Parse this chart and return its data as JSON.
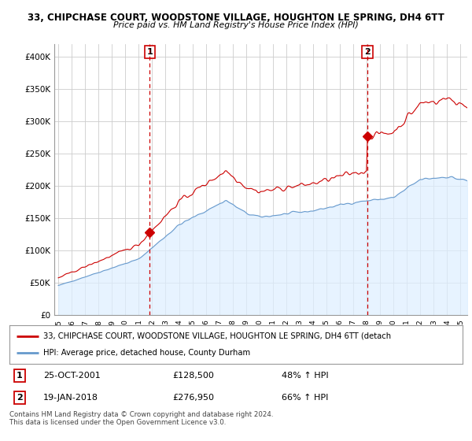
{
  "title1": "33, CHIPCHASE COURT, WOODSTONE VILLAGE, HOUGHTON LE SPRING, DH4 6TT",
  "title2": "Price paid vs. HM Land Registry's House Price Index (HPI)",
  "legend_line1": "33, CHIPCHASE COURT, WOODSTONE VILLAGE, HOUGHTON LE SPRING, DH4 6TT (detach",
  "legend_line2": "HPI: Average price, detached house, County Durham",
  "annotation1_label": "1",
  "annotation1_date": "25-OCT-2001",
  "annotation1_price": "£128,500",
  "annotation1_hpi": "48% ↑ HPI",
  "annotation2_label": "2",
  "annotation2_date": "19-JAN-2018",
  "annotation2_price": "£276,950",
  "annotation2_hpi": "66% ↑ HPI",
  "footer": "Contains HM Land Registry data © Crown copyright and database right 2024.\nThis data is licensed under the Open Government Licence v3.0.",
  "red_color": "#cc0000",
  "blue_color": "#6699cc",
  "blue_fill": "#ddeeff",
  "background_color": "#ffffff",
  "grid_color": "#cccccc",
  "ylim": [
    0,
    420000
  ],
  "yticks": [
    0,
    50000,
    100000,
    150000,
    200000,
    250000,
    300000,
    350000,
    400000
  ],
  "ytick_labels": [
    "£0",
    "£50K",
    "£100K",
    "£150K",
    "£200K",
    "£250K",
    "£300K",
    "£350K",
    "£400K"
  ],
  "purchase1_x": 2001.82,
  "purchase1_y": 128500,
  "purchase2_x": 2018.05,
  "purchase2_y": 276950,
  "xmin": 1995.0,
  "xmax": 2025.5
}
